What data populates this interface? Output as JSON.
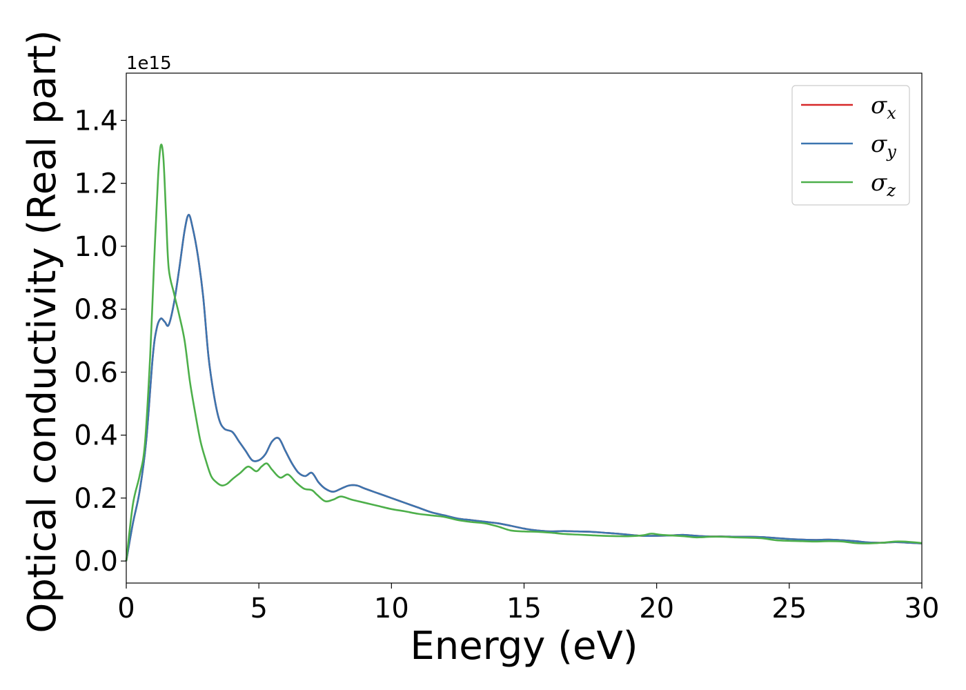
{
  "chart_data": {
    "type": "line",
    "xlabel": "Energy (eV)",
    "ylabel": "Optical conductivity (Real part)",
    "y_offset_label": "1e15",
    "xlim": [
      0,
      30
    ],
    "ylim": [
      -0.07,
      1.55
    ],
    "x_ticks": [
      0,
      5,
      10,
      15,
      20,
      25,
      30
    ],
    "x_tick_labels": [
      "0",
      "5",
      "10",
      "15",
      "20",
      "25",
      "30"
    ],
    "y_ticks": [
      0.0,
      0.2,
      0.4,
      0.6,
      0.8,
      1.0,
      1.2,
      1.4
    ],
    "y_tick_labels": [
      "0.0",
      "0.2",
      "0.4",
      "0.6",
      "0.8",
      "1.0",
      "1.2",
      "1.4"
    ],
    "grid": false,
    "legend_position": "top-right",
    "series": [
      {
        "name": "σx",
        "symbol": "σ",
        "subscript": "x",
        "color": "#d62728",
        "x": [
          0,
          0.25,
          0.5,
          0.75,
          1.0,
          1.15,
          1.3,
          1.45,
          1.6,
          1.8,
          2.0,
          2.2,
          2.35,
          2.5,
          2.7,
          2.9,
          3.1,
          3.3,
          3.5,
          3.7,
          4.0,
          4.25,
          4.5,
          4.75,
          5.0,
          5.25,
          5.5,
          5.75,
          6.0,
          6.25,
          6.5,
          6.75,
          7.0,
          7.25,
          7.5,
          7.8,
          8.1,
          8.4,
          8.7,
          9.0,
          9.5,
          10.0,
          10.5,
          11.0,
          11.5,
          12.0,
          12.5,
          13.0,
          13.5,
          14.0,
          14.5,
          15.0,
          15.5,
          16.0,
          16.5,
          17.0,
          17.5,
          18.0,
          18.5,
          19.0,
          19.5,
          20.0,
          20.5,
          21.0,
          21.5,
          22.0,
          22.5,
          23.0,
          23.5,
          24.0,
          24.5,
          25.0,
          25.5,
          26.0,
          26.5,
          27.0,
          27.5,
          28.0,
          28.5,
          29.0,
          29.5,
          30.0
        ],
        "y": [
          0.0,
          0.12,
          0.22,
          0.38,
          0.65,
          0.74,
          0.77,
          0.76,
          0.75,
          0.82,
          0.93,
          1.05,
          1.1,
          1.06,
          0.97,
          0.84,
          0.65,
          0.53,
          0.45,
          0.42,
          0.41,
          0.38,
          0.35,
          0.32,
          0.32,
          0.34,
          0.38,
          0.39,
          0.35,
          0.31,
          0.28,
          0.27,
          0.28,
          0.25,
          0.23,
          0.22,
          0.23,
          0.24,
          0.24,
          0.23,
          0.215,
          0.2,
          0.185,
          0.17,
          0.155,
          0.145,
          0.135,
          0.13,
          0.125,
          0.12,
          0.112,
          0.103,
          0.097,
          0.094,
          0.095,
          0.094,
          0.093,
          0.09,
          0.087,
          0.083,
          0.08,
          0.08,
          0.081,
          0.083,
          0.08,
          0.078,
          0.078,
          0.077,
          0.077,
          0.076,
          0.073,
          0.07,
          0.068,
          0.067,
          0.068,
          0.066,
          0.063,
          0.059,
          0.058,
          0.06,
          0.058,
          0.056
        ]
      },
      {
        "name": "σy",
        "symbol": "σ",
        "subscript": "y",
        "color": "#3b75af",
        "x": [
          0,
          0.25,
          0.5,
          0.75,
          1.0,
          1.15,
          1.3,
          1.45,
          1.6,
          1.8,
          2.0,
          2.2,
          2.35,
          2.5,
          2.7,
          2.9,
          3.1,
          3.3,
          3.5,
          3.7,
          4.0,
          4.25,
          4.5,
          4.75,
          5.0,
          5.25,
          5.5,
          5.75,
          6.0,
          6.25,
          6.5,
          6.75,
          7.0,
          7.25,
          7.5,
          7.8,
          8.1,
          8.4,
          8.7,
          9.0,
          9.5,
          10.0,
          10.5,
          11.0,
          11.5,
          12.0,
          12.5,
          13.0,
          13.5,
          14.0,
          14.5,
          15.0,
          15.5,
          16.0,
          16.5,
          17.0,
          17.5,
          18.0,
          18.5,
          19.0,
          19.5,
          20.0,
          20.5,
          21.0,
          21.5,
          22.0,
          22.5,
          23.0,
          23.5,
          24.0,
          24.5,
          25.0,
          25.5,
          26.0,
          26.5,
          27.0,
          27.5,
          28.0,
          28.5,
          29.0,
          29.5,
          30.0
        ],
        "y": [
          0.0,
          0.12,
          0.22,
          0.38,
          0.65,
          0.74,
          0.77,
          0.76,
          0.75,
          0.82,
          0.93,
          1.05,
          1.1,
          1.06,
          0.97,
          0.84,
          0.65,
          0.53,
          0.45,
          0.42,
          0.41,
          0.38,
          0.35,
          0.32,
          0.32,
          0.34,
          0.38,
          0.39,
          0.35,
          0.31,
          0.28,
          0.27,
          0.28,
          0.25,
          0.23,
          0.22,
          0.23,
          0.24,
          0.24,
          0.23,
          0.215,
          0.2,
          0.185,
          0.17,
          0.155,
          0.145,
          0.135,
          0.13,
          0.125,
          0.12,
          0.112,
          0.103,
          0.097,
          0.094,
          0.095,
          0.094,
          0.093,
          0.09,
          0.087,
          0.083,
          0.08,
          0.08,
          0.081,
          0.083,
          0.08,
          0.078,
          0.078,
          0.077,
          0.077,
          0.076,
          0.073,
          0.07,
          0.068,
          0.067,
          0.068,
          0.066,
          0.063,
          0.059,
          0.058,
          0.06,
          0.058,
          0.056
        ]
      },
      {
        "name": "σz",
        "symbol": "σ",
        "subscript": "z",
        "color": "#4daf4a",
        "x": [
          0,
          0.25,
          0.5,
          0.7,
          0.9,
          1.05,
          1.2,
          1.3,
          1.4,
          1.5,
          1.6,
          1.8,
          2.0,
          2.2,
          2.4,
          2.6,
          2.8,
          3.0,
          3.2,
          3.4,
          3.6,
          3.8,
          4.0,
          4.3,
          4.6,
          4.9,
          5.1,
          5.3,
          5.5,
          5.8,
          6.1,
          6.4,
          6.7,
          7.0,
          7.2,
          7.5,
          7.8,
          8.1,
          8.5,
          9.0,
          9.5,
          10.0,
          10.5,
          11.0,
          11.5,
          12.0,
          12.5,
          13.0,
          13.5,
          14.0,
          14.5,
          15.0,
          15.5,
          16.0,
          16.5,
          17.0,
          17.5,
          18.0,
          18.5,
          19.0,
          19.5,
          19.8,
          20.2,
          21.0,
          21.5,
          22.0,
          22.5,
          23.0,
          23.5,
          24.0,
          24.5,
          25.0,
          25.5,
          26.0,
          26.5,
          27.0,
          27.5,
          28.0,
          28.5,
          29.0,
          29.5,
          30.0
        ],
        "y": [
          0.0,
          0.18,
          0.27,
          0.37,
          0.65,
          0.95,
          1.22,
          1.32,
          1.28,
          1.1,
          0.93,
          0.85,
          0.78,
          0.7,
          0.57,
          0.47,
          0.38,
          0.32,
          0.27,
          0.25,
          0.24,
          0.245,
          0.26,
          0.28,
          0.3,
          0.285,
          0.3,
          0.31,
          0.29,
          0.265,
          0.275,
          0.25,
          0.23,
          0.225,
          0.21,
          0.19,
          0.195,
          0.205,
          0.195,
          0.185,
          0.175,
          0.165,
          0.158,
          0.15,
          0.145,
          0.14,
          0.13,
          0.124,
          0.12,
          0.11,
          0.097,
          0.094,
          0.093,
          0.09,
          0.086,
          0.084,
          0.082,
          0.08,
          0.079,
          0.079,
          0.082,
          0.087,
          0.083,
          0.079,
          0.075,
          0.077,
          0.077,
          0.075,
          0.074,
          0.072,
          0.066,
          0.064,
          0.063,
          0.062,
          0.063,
          0.062,
          0.057,
          0.056,
          0.058,
          0.062,
          0.061,
          0.057
        ]
      }
    ]
  }
}
